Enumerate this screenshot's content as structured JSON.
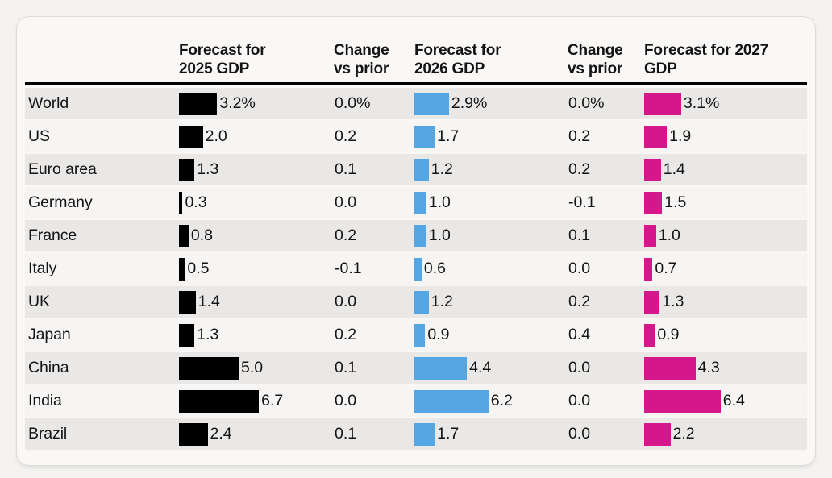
{
  "table": {
    "headers": [
      {
        "id": "country",
        "line1": "",
        "line2": ""
      },
      {
        "id": "gdp2025",
        "line1": "Forecast for",
        "line2": "2025 GDP"
      },
      {
        "id": "change1",
        "line1": "Change",
        "line2": "vs prior"
      },
      {
        "id": "gdp2026",
        "line1": "Forecast for",
        "line2": "2026 GDP"
      },
      {
        "id": "change2",
        "line1": "Change",
        "line2": "vs prior"
      },
      {
        "id": "gdp2027",
        "line1": "Forecast for 2027",
        "line2": "GDP"
      }
    ]
  },
  "chart_data": {
    "type": "bar",
    "orientation": "horizontal",
    "unit": "%",
    "value_range": [
      0,
      6.7
    ],
    "bar_colors": [
      "#000000",
      "#55a7e3",
      "#d4188c"
    ],
    "stripe_color": "#e9e8e7",
    "bar_columns": [
      "Forecast for 2025 GDP",
      "Forecast for 2026 GDP",
      "Forecast for 2027 GDP"
    ],
    "change_columns": [
      "Change vs prior",
      "Change vs prior"
    ],
    "rows": [
      {
        "label": "World",
        "bars": [
          {
            "value": 3.2,
            "text": "3.2%"
          },
          {
            "value": 2.9,
            "text": "2.9%"
          },
          {
            "value": 3.1,
            "text": "3.1%"
          }
        ],
        "changes": [
          "0.0%",
          "0.0%"
        ]
      },
      {
        "label": "US",
        "bars": [
          {
            "value": 2.0,
            "text": "2.0"
          },
          {
            "value": 1.7,
            "text": "1.7"
          },
          {
            "value": 1.9,
            "text": "1.9"
          }
        ],
        "changes": [
          "0.2",
          "0.2"
        ]
      },
      {
        "label": "Euro area",
        "bars": [
          {
            "value": 1.3,
            "text": "1.3"
          },
          {
            "value": 1.2,
            "text": "1.2"
          },
          {
            "value": 1.4,
            "text": "1.4"
          }
        ],
        "changes": [
          "0.1",
          "0.2"
        ]
      },
      {
        "label": "Germany",
        "bars": [
          {
            "value": 0.3,
            "text": "0.3"
          },
          {
            "value": 1.0,
            "text": "1.0"
          },
          {
            "value": 1.5,
            "text": "1.5"
          }
        ],
        "changes": [
          "0.0",
          "-0.1"
        ]
      },
      {
        "label": "France",
        "bars": [
          {
            "value": 0.8,
            "text": "0.8"
          },
          {
            "value": 1.0,
            "text": "1.0"
          },
          {
            "value": 1.0,
            "text": "1.0"
          }
        ],
        "changes": [
          "0.2",
          "0.1"
        ]
      },
      {
        "label": "Italy",
        "bars": [
          {
            "value": 0.5,
            "text": "0.5"
          },
          {
            "value": 0.6,
            "text": "0.6"
          },
          {
            "value": 0.7,
            "text": "0.7"
          }
        ],
        "changes": [
          "-0.1",
          "0.0"
        ]
      },
      {
        "label": "UK",
        "bars": [
          {
            "value": 1.4,
            "text": "1.4"
          },
          {
            "value": 1.2,
            "text": "1.2"
          },
          {
            "value": 1.3,
            "text": "1.3"
          }
        ],
        "changes": [
          "0.0",
          "0.2"
        ]
      },
      {
        "label": "Japan",
        "bars": [
          {
            "value": 1.3,
            "text": "1.3"
          },
          {
            "value": 0.9,
            "text": "0.9"
          },
          {
            "value": 0.9,
            "text": "0.9"
          }
        ],
        "changes": [
          "0.2",
          "0.4"
        ]
      },
      {
        "label": "China",
        "bars": [
          {
            "value": 5.0,
            "text": "5.0"
          },
          {
            "value": 4.4,
            "text": "4.4"
          },
          {
            "value": 4.3,
            "text": "4.3"
          }
        ],
        "changes": [
          "0.1",
          "0.0"
        ]
      },
      {
        "label": "India",
        "bars": [
          {
            "value": 6.7,
            "text": "6.7"
          },
          {
            "value": 6.2,
            "text": "6.2"
          },
          {
            "value": 6.4,
            "text": "6.4"
          }
        ],
        "changes": [
          "0.0",
          "0.0"
        ]
      },
      {
        "label": "Brazil",
        "bars": [
          {
            "value": 2.4,
            "text": "2.4"
          },
          {
            "value": 1.7,
            "text": "1.7"
          },
          {
            "value": 2.2,
            "text": "2.2"
          }
        ],
        "changes": [
          "0.1",
          "0.0"
        ]
      }
    ]
  }
}
